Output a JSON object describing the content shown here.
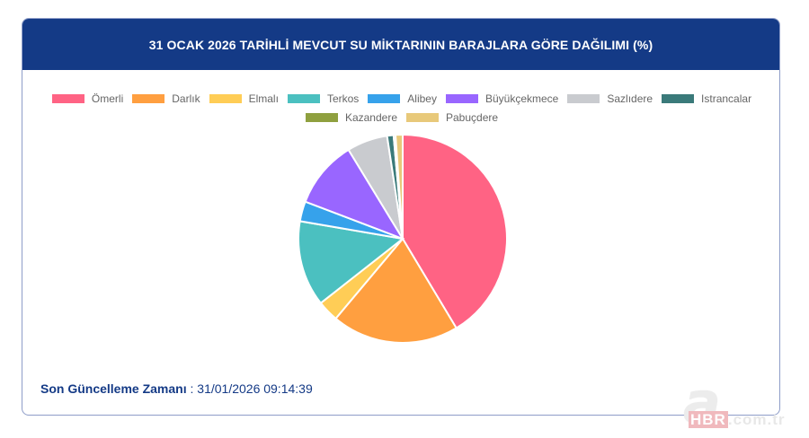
{
  "header": {
    "title": "31 OCAK 2026 TARİHLİ MEVCUT SU MİKTARININ BARAJLARA GÖRE DAĞILIMI (%)"
  },
  "chart_data": {
    "type": "pie",
    "title": "31 OCAK 2026 TARİHLİ MEVCUT SU MİKTARININ BARAJLARA GÖRE DAĞILIMI (%)",
    "categories": [
      "Ömerli",
      "Darlık",
      "Elmalı",
      "Terkos",
      "Alibey",
      "Büyükçekmece",
      "Sazlıdere",
      "Istrancalar",
      "Kazandere",
      "Pabuçdere"
    ],
    "values": [
      41.4,
      19.7,
      3.3,
      13.3,
      3.1,
      10.5,
      6.3,
      1.0,
      0.3,
      1.1
    ],
    "colors": [
      "#ff6384",
      "#ff9f40",
      "#ffcd56",
      "#4bc0c0",
      "#36a2eb",
      "#9966ff",
      "#c9cbcf",
      "#3a7a7a",
      "#8fa03f",
      "#e8c97a"
    ],
    "legend_position": "top",
    "unit": "%"
  },
  "legend": {
    "row1": [
      {
        "label": "Ömerli",
        "color": "#ff6384"
      },
      {
        "label": "Darlık",
        "color": "#ff9f40"
      },
      {
        "label": "Elmalı",
        "color": "#ffcd56"
      },
      {
        "label": "Terkos",
        "color": "#4bc0c0"
      },
      {
        "label": "Alibey",
        "color": "#36a2eb"
      },
      {
        "label": "Büyükçekmece",
        "color": "#9966ff"
      },
      {
        "label": "Sazlıdere",
        "color": "#c9cbcf"
      },
      {
        "label": "Istrancalar",
        "color": "#3a7a7a"
      }
    ],
    "row2": [
      {
        "label": "Kazandere",
        "color": "#8fa03f"
      },
      {
        "label": "Pabuçdere",
        "color": "#e8c97a"
      }
    ]
  },
  "footer": {
    "label": "Son Güncelleme Zamanı",
    "separator": " : ",
    "value": "31/01/2026 09:14:39"
  },
  "watermark": {
    "letter": "a",
    "brand": "HBR",
    "domain": ".com.tr"
  }
}
